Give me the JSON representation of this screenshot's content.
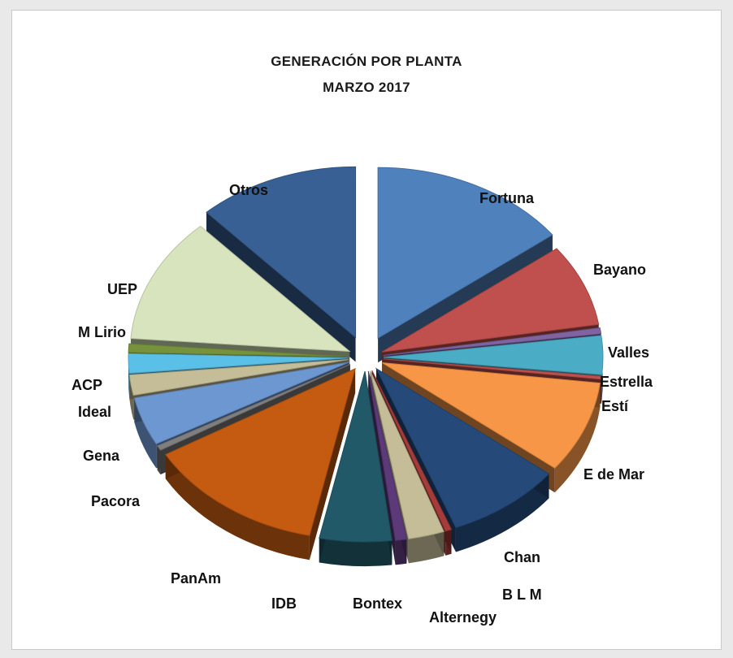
{
  "chart_data": {
    "type": "pie",
    "title": "GENERACIÓN  POR  PLANTA",
    "subtitle": "MARZO  2017",
    "exploded": true,
    "slices": [
      {
        "label": "Fortuna",
        "value": 16.0,
        "color": "#4f81bd"
      },
      {
        "label": "Bayano",
        "value": 8.5,
        "color": "#c0504d"
      },
      {
        "label": "Valles",
        "value": 0.6,
        "color": "#8064a2"
      },
      {
        "label": "Estrella",
        "value": 4.0,
        "color": "#4bacc6"
      },
      {
        "label": "Estí",
        "value": 0.3,
        "color": "#c0504d"
      },
      {
        "label": "E de Mar",
        "value": 9.5,
        "color": "#f79646"
      },
      {
        "label": "Chan",
        "value": 9.3,
        "color": "#254a7a"
      },
      {
        "label": "B L M",
        "value": 0.5,
        "color": "#a63c3a"
      },
      {
        "label": "Alternegy",
        "value": 2.9,
        "color": "#c4bd97"
      },
      {
        "label": "Bontex",
        "value": 0.9,
        "color": "#5c3a7a"
      },
      {
        "label": "IDB",
        "value": 5.8,
        "color": "#215968"
      },
      {
        "label": "PanAm",
        "value": 14.5,
        "color": "#c55a11"
      },
      {
        "label": "Pacora",
        "value": 0.5,
        "color": "#7f7f7f"
      },
      {
        "label": "Gena",
        "value": 5.0,
        "color": "#6d97d1"
      },
      {
        "label": "Ideal",
        "value": 2.1,
        "color": "#c4bd97"
      },
      {
        "label": "ACP",
        "value": 2.0,
        "color": "#5bc0e8"
      },
      {
        "label": "M Lirio",
        "value": 0.9,
        "color": "#76923c"
      },
      {
        "label": "UEP",
        "value": 13.0,
        "color": "#d7e4bd"
      },
      {
        "label": "Otros",
        "value": 13.0,
        "color": "#386094"
      }
    ]
  }
}
